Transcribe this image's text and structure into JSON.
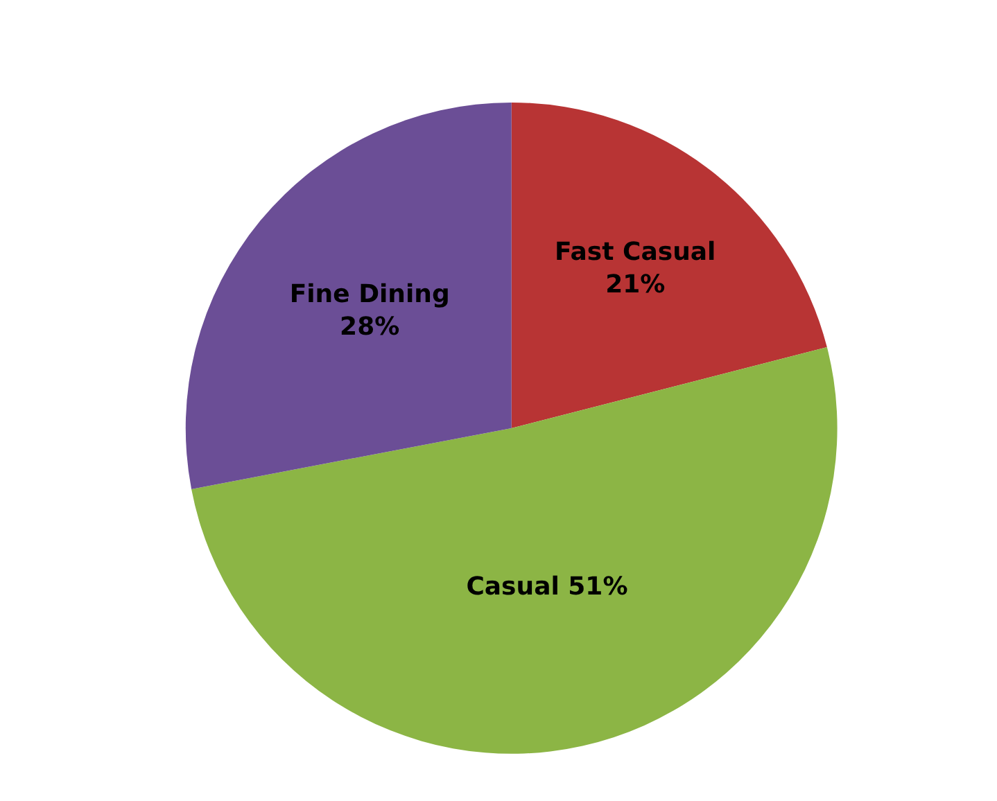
{
  "chart_data": {
    "type": "pie",
    "categories": [
      "Fast Casual",
      "Casual",
      "Fine Dining"
    ],
    "values": [
      21,
      51,
      28
    ],
    "colors": [
      "#b83434",
      "#8cb545",
      "#6b4e96"
    ],
    "value_labels": [
      "21%",
      "51%",
      "28%"
    ],
    "legend": false
  }
}
